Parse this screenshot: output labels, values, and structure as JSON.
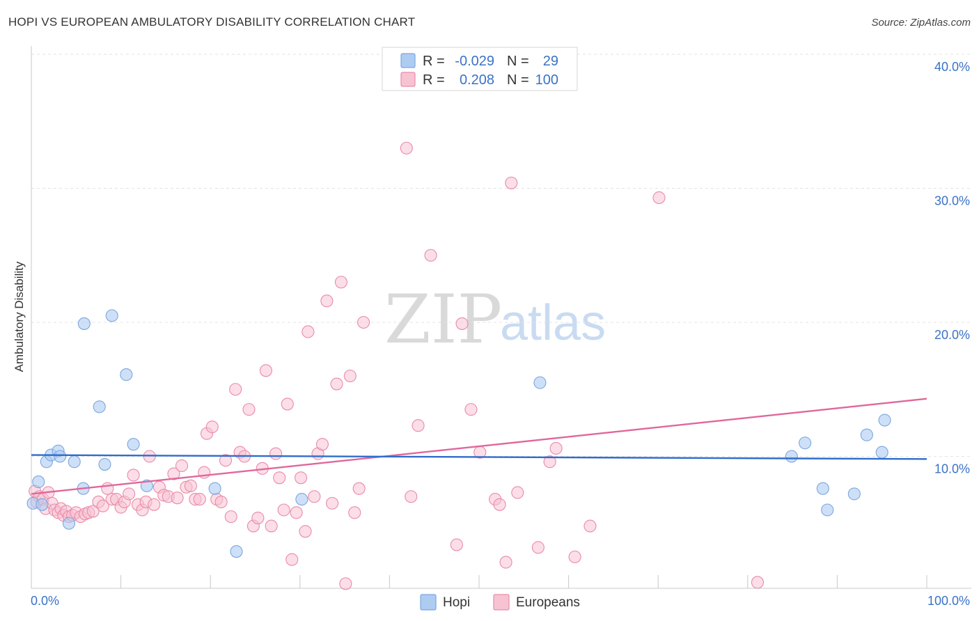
{
  "header": {
    "title": "HOPI VS EUROPEAN AMBULATORY DISABILITY CORRELATION CHART",
    "source": "Source: ZipAtlas.com"
  },
  "watermark": {
    "zip": "ZIP",
    "atlas": "atlas"
  },
  "legend": {
    "r_label": "R =",
    "n_label": "N =",
    "rows": [
      {
        "r": "-0.029",
        "n": "29",
        "color": "#aecbf2"
      },
      {
        "r": "0.208",
        "n": "100",
        "color": "#f7b9cc"
      }
    ]
  },
  "colors": {
    "hopi_fill": "#aecbf2",
    "hopi_stroke": "#7aa6de",
    "hopi_line": "#2f6ccc",
    "eur_fill": "#f7c3d3",
    "eur_stroke": "#e98aa8",
    "eur_line": "#e0679a",
    "tick_text": "#3a72c7"
  },
  "chart_data": {
    "type": "scatter",
    "title": "HOPI VS EUROPEAN AMBULATORY DISABILITY CORRELATION CHART",
    "xlabel": "",
    "ylabel": "Ambulatory Disability",
    "xlim": [
      0,
      100
    ],
    "ylim": [
      0,
      40
    ],
    "x_tick_labels": [
      "0.0%",
      "100.0%"
    ],
    "y_ticks": [
      10,
      20,
      30,
      40
    ],
    "y_tick_labels": [
      "10.0%",
      "20.0%",
      "30.0%",
      "40.0%"
    ],
    "grid": true,
    "legend_position": "top-center",
    "series": [
      {
        "name": "Hopi",
        "r": -0.029,
        "n": 29,
        "trend": {
          "x": [
            0,
            100
          ],
          "y": [
            10.1,
            9.8
          ]
        },
        "points": [
          [
            0.2,
            6.5
          ],
          [
            0.8,
            8.1
          ],
          [
            1.2,
            6.4
          ],
          [
            1.7,
            9.6
          ],
          [
            2.2,
            10.1
          ],
          [
            3.0,
            10.4
          ],
          [
            3.2,
            10.0
          ],
          [
            4.2,
            5.0
          ],
          [
            4.8,
            9.6
          ],
          [
            5.8,
            7.6
          ],
          [
            5.9,
            19.9
          ],
          [
            7.6,
            13.7
          ],
          [
            8.2,
            9.4
          ],
          [
            9.0,
            20.5
          ],
          [
            10.6,
            16.1
          ],
          [
            11.4,
            10.9
          ],
          [
            12.9,
            7.8
          ],
          [
            20.5,
            7.6
          ],
          [
            22.9,
            2.9
          ],
          [
            30.2,
            6.8
          ],
          [
            56.8,
            15.5
          ],
          [
            84.9,
            10.0
          ],
          [
            86.4,
            11.0
          ],
          [
            88.4,
            7.6
          ],
          [
            88.9,
            6.0
          ],
          [
            91.9,
            7.2
          ],
          [
            93.3,
            11.6
          ],
          [
            95.0,
            10.3
          ],
          [
            95.3,
            12.7
          ]
        ]
      },
      {
        "name": "Europeans",
        "r": 0.208,
        "n": 100,
        "trend": {
          "x": [
            0,
            100
          ],
          "y": [
            7.2,
            14.3
          ]
        },
        "points": [
          [
            0.4,
            7.4
          ],
          [
            0.6,
            6.6
          ],
          [
            0.9,
            7.0
          ],
          [
            1.3,
            6.8
          ],
          [
            1.6,
            6.1
          ],
          [
            1.9,
            7.3
          ],
          [
            2.3,
            6.5
          ],
          [
            2.6,
            6.0
          ],
          [
            3.0,
            5.8
          ],
          [
            3.3,
            6.1
          ],
          [
            3.6,
            5.6
          ],
          [
            3.9,
            5.9
          ],
          [
            4.2,
            5.5
          ],
          [
            4.6,
            5.6
          ],
          [
            5.0,
            5.8
          ],
          [
            5.5,
            5.5
          ],
          [
            6.0,
            5.7
          ],
          [
            6.4,
            5.8
          ],
          [
            6.9,
            5.9
          ],
          [
            7.5,
            6.6
          ],
          [
            8.0,
            6.3
          ],
          [
            8.5,
            7.6
          ],
          [
            9.0,
            6.8
          ],
          [
            9.5,
            6.8
          ],
          [
            10.0,
            6.2
          ],
          [
            10.4,
            6.6
          ],
          [
            10.9,
            7.2
          ],
          [
            11.4,
            8.6
          ],
          [
            11.9,
            6.4
          ],
          [
            12.4,
            6.0
          ],
          [
            12.8,
            6.6
          ],
          [
            13.2,
            10.0
          ],
          [
            13.7,
            6.4
          ],
          [
            14.3,
            7.7
          ],
          [
            14.8,
            7.1
          ],
          [
            15.3,
            7.0
          ],
          [
            15.9,
            8.7
          ],
          [
            16.3,
            6.9
          ],
          [
            16.8,
            9.3
          ],
          [
            17.3,
            7.7
          ],
          [
            17.8,
            7.8
          ],
          [
            18.3,
            6.8
          ],
          [
            18.8,
            6.8
          ],
          [
            19.3,
            8.8
          ],
          [
            19.6,
            11.7
          ],
          [
            20.2,
            12.2
          ],
          [
            20.7,
            6.8
          ],
          [
            21.2,
            6.6
          ],
          [
            21.7,
            9.7
          ],
          [
            22.3,
            5.5
          ],
          [
            22.8,
            15.0
          ],
          [
            23.3,
            10.3
          ],
          [
            23.8,
            10.0
          ],
          [
            24.3,
            13.5
          ],
          [
            24.8,
            4.8
          ],
          [
            25.3,
            5.4
          ],
          [
            25.8,
            9.1
          ],
          [
            26.2,
            16.4
          ],
          [
            26.8,
            4.8
          ],
          [
            27.3,
            10.2
          ],
          [
            27.7,
            8.4
          ],
          [
            28.2,
            6.0
          ],
          [
            28.6,
            13.9
          ],
          [
            29.1,
            2.3
          ],
          [
            29.6,
            5.8
          ],
          [
            30.1,
            8.4
          ],
          [
            30.6,
            4.4
          ],
          [
            30.9,
            19.3
          ],
          [
            31.6,
            7.0
          ],
          [
            32.0,
            10.2
          ],
          [
            32.5,
            10.9
          ],
          [
            33.0,
            21.6
          ],
          [
            33.6,
            6.5
          ],
          [
            34.1,
            15.4
          ],
          [
            34.6,
            23.0
          ],
          [
            35.1,
            0.5
          ],
          [
            35.6,
            16.0
          ],
          [
            36.1,
            5.8
          ],
          [
            36.6,
            7.6
          ],
          [
            37.1,
            20.0
          ],
          [
            41.9,
            33.0
          ],
          [
            42.4,
            7.0
          ],
          [
            43.2,
            12.3
          ],
          [
            44.6,
            25.0
          ],
          [
            47.5,
            3.4
          ],
          [
            48.1,
            19.9
          ],
          [
            49.1,
            13.5
          ],
          [
            50.1,
            10.3
          ],
          [
            51.8,
            6.8
          ],
          [
            52.3,
            6.4
          ],
          [
            53.0,
            2.1
          ],
          [
            53.6,
            30.4
          ],
          [
            54.3,
            7.3
          ],
          [
            56.6,
            3.2
          ],
          [
            57.9,
            9.6
          ],
          [
            58.6,
            10.6
          ],
          [
            60.7,
            2.5
          ],
          [
            62.4,
            4.8
          ],
          [
            70.1,
            29.3
          ],
          [
            81.1,
            0.6
          ]
        ]
      }
    ]
  },
  "bottom_legend": [
    {
      "label": "Hopi",
      "color": "#aecbf2"
    },
    {
      "label": "Europeans",
      "color": "#f7c3d3"
    }
  ]
}
